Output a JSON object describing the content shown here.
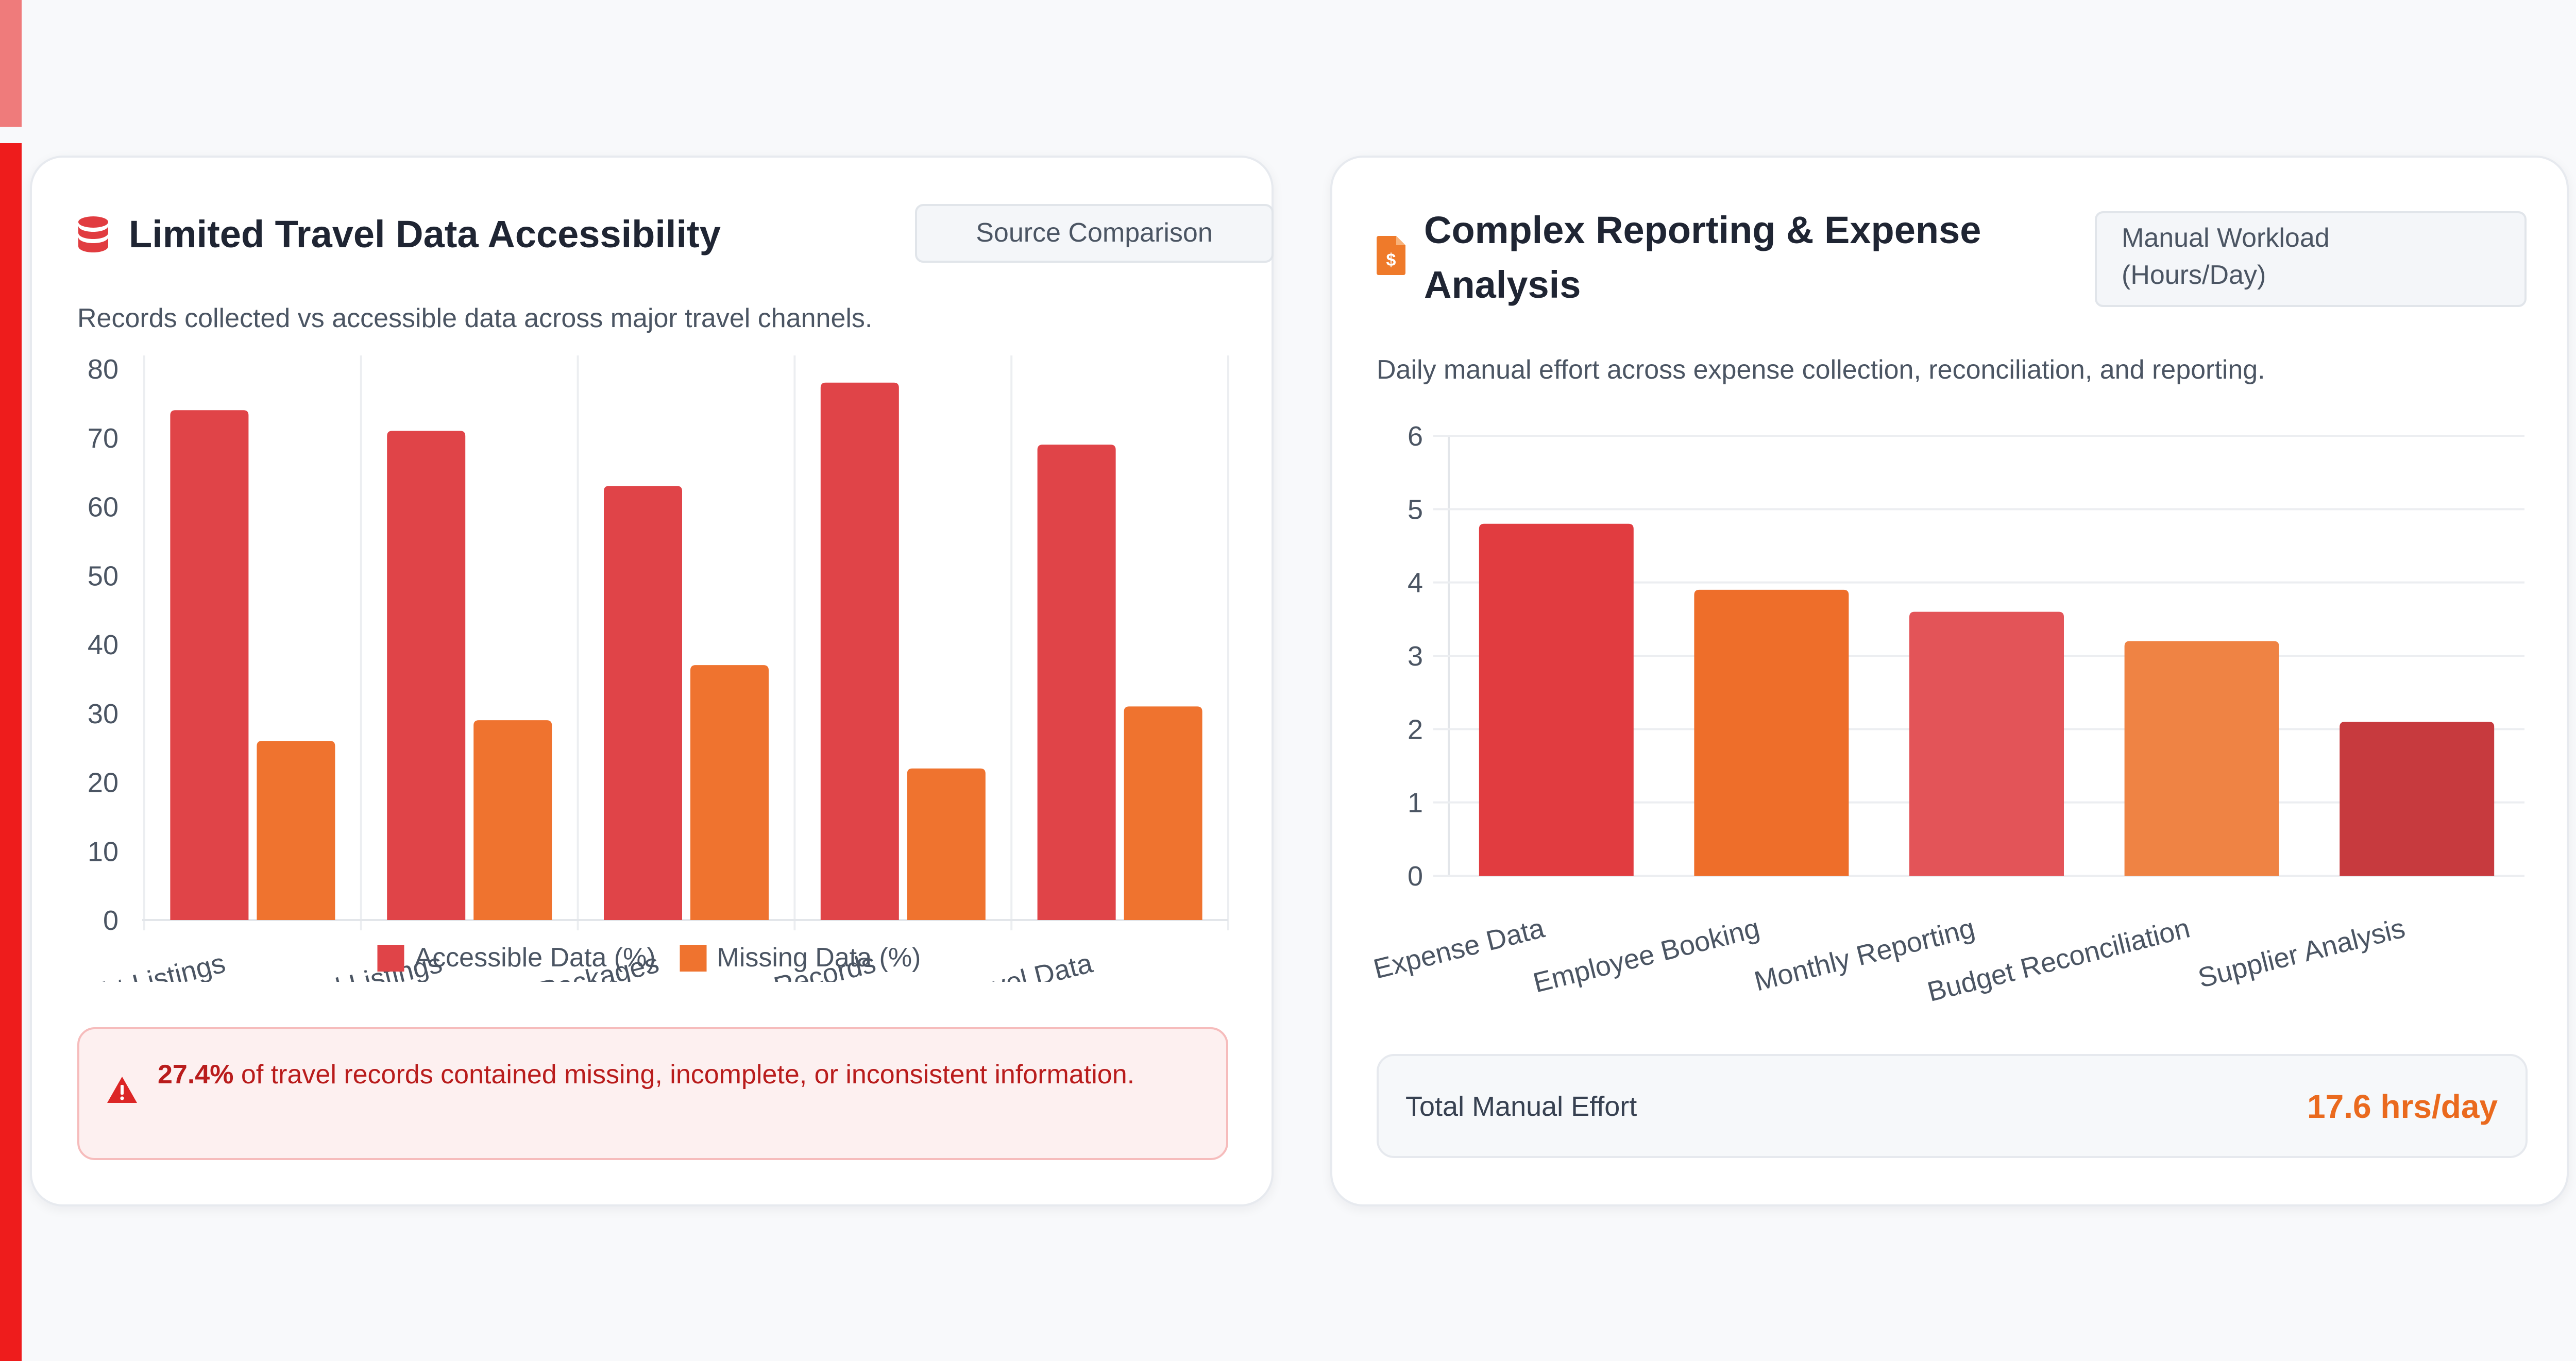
{
  "left_card": {
    "title": "Limited Travel Data Accessibility",
    "badge": "Source Comparison",
    "description": "Records collected vs accessible data across major travel channels.",
    "icon": "database-icon",
    "alert": {
      "icon": "warning-triangle-icon",
      "highlight": "27.4%",
      "text": " of travel records contained missing, incomplete, or inconsistent information."
    }
  },
  "right_card": {
    "title_line1": "Complex Reporting & Expense",
    "title_line2": "Analysis",
    "badge_line1": "Manual Workload",
    "badge_line2": "(Hours/Day)",
    "description": "Daily manual effort across expense collection, reconciliation, and reporting.",
    "icon": "invoice-dollar-icon",
    "total": {
      "label": "Total Manual Effort",
      "value": "17.6 hrs/day"
    }
  },
  "colors": {
    "accessible": "#e04448",
    "missing": "#ef732f",
    "expense_bars": [
      "#e13c40",
      "#ee6e2a",
      "#e35458",
      "#ef8344",
      "#c73a3e"
    ]
  },
  "chart_data": [
    {
      "type": "bar",
      "categories": [
        "Flight Listings",
        "Hotel Listings",
        "Travel Packages",
        "Booking Records",
        "Corporate Travel Data"
      ],
      "series": [
        {
          "name": "Accessible Data (%)",
          "values": [
            74,
            71,
            63,
            78,
            69
          ]
        },
        {
          "name": "Missing Data (%)",
          "values": [
            26,
            29,
            37,
            22,
            31
          ]
        }
      ],
      "yticks": [
        0,
        10,
        20,
        30,
        40,
        50,
        60,
        70,
        80
      ],
      "ylim": [
        0,
        80
      ],
      "grid": "vertical",
      "legend": "bottom-center"
    },
    {
      "type": "bar",
      "categories": [
        "Expense Data",
        "Employee Booking",
        "Monthly Reporting",
        "Budget Reconciliation",
        "Supplier Analysis"
      ],
      "values": [
        4.8,
        3.9,
        3.6,
        3.2,
        2.1
      ],
      "yticks": [
        0,
        1,
        2,
        3,
        4,
        5,
        6
      ],
      "ylim": [
        0,
        6
      ],
      "grid": "horizontal",
      "legend": "none"
    }
  ]
}
